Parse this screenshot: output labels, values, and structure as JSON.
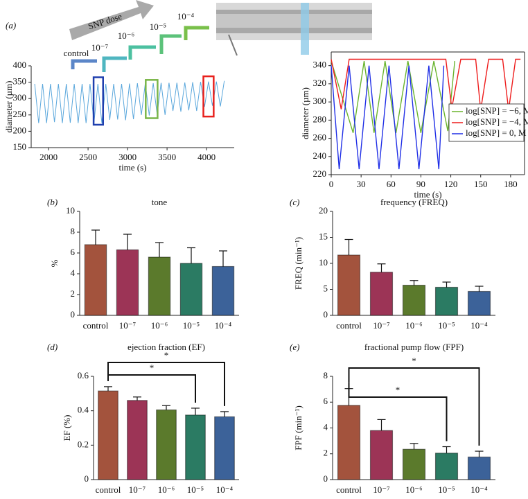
{
  "chart_data": [
    {
      "type": "line",
      "panel_label": "(a)",
      "x_label": "time (s)",
      "y_label": "diameter (µm)",
      "dose_arrow": "SNP dose",
      "dose_labels": [
        "control",
        "10⁻⁷",
        "10⁻⁶",
        "10⁻⁵",
        "10⁻⁴"
      ],
      "xlim": [
        1780,
        4350
      ],
      "xticks": [
        2000,
        2500,
        3000,
        3500,
        4000
      ],
      "ylim": [
        150,
        400
      ],
      "yticks": [
        150,
        200,
        250,
        300,
        350,
        400
      ],
      "x": [
        1825,
        1875,
        1925,
        1975,
        2025,
        2075,
        2125,
        2175,
        2225,
        2275,
        2325,
        2375,
        2425,
        2475,
        2525,
        2575,
        2625,
        2675,
        2725,
        2775,
        2825,
        2875,
        2925,
        2975,
        3025,
        3075,
        3125,
        3175,
        3225,
        3275,
        3325,
        3375,
        3425,
        3475,
        3525,
        3575,
        3625,
        3675,
        3725,
        3775,
        3825,
        3875,
        3925,
        3975,
        4025,
        4075,
        4125,
        4175,
        4225
      ],
      "series": [
        {
          "color": "#5aa7dc",
          "values": [
            345,
            225,
            345,
            225,
            345,
            228,
            345,
            225,
            345,
            226,
            345,
            225,
            345,
            225,
            345,
            226,
            345,
            225,
            345,
            235,
            345,
            236,
            345,
            234,
            346,
            237,
            347,
            250,
            347,
            248,
            347,
            252,
            348,
            250,
            348,
            262,
            348,
            260,
            349,
            264,
            350,
            262,
            351,
            275,
            352,
            278,
            352,
            276,
            354
          ]
        }
      ],
      "boxes": [
        {
          "color": "#1f3fae",
          "xlim": [
            2570,
            2690
          ],
          "ylim": [
            220,
            365
          ]
        },
        {
          "color": "#7ab648",
          "xlim": [
            3230,
            3380
          ],
          "ylim": [
            240,
            357
          ]
        },
        {
          "color": "#e8201c",
          "xlim": [
            3960,
            4090
          ],
          "ylim": [
            245,
            368
          ]
        }
      ]
    },
    {
      "type": "line",
      "x_label": "time (s)",
      "y_label": "diameter (µm)",
      "xlim": [
        0,
        194
      ],
      "xticks": [
        0,
        30,
        60,
        90,
        120,
        150,
        180
      ],
      "ylim": [
        220,
        355
      ],
      "yticks": [
        220,
        240,
        260,
        280,
        300,
        320,
        340
      ],
      "series": [
        {
          "name": "log[SNP] = −6, M",
          "color": "#6ab42e",
          "x": [
            0,
            22,
            33,
            43,
            54,
            65,
            77,
            90,
            103,
            117,
            124
          ],
          "values": [
            345,
            266,
            345,
            266,
            345,
            266,
            345,
            266,
            345,
            268,
            345
          ]
        },
        {
          "name": "log[SNP] = −4, M",
          "color": "#ee1c1c",
          "x": [
            0,
            10,
            18,
            115,
            121,
            130,
            145,
            150,
            158,
            172,
            178,
            185,
            190
          ],
          "values": [
            347,
            292,
            347,
            347,
            293,
            347,
            347,
            291,
            347,
            347,
            291,
            347,
            347
          ]
        },
        {
          "name": "log[SNP] = 0, M",
          "color": "#1f2ee6",
          "x": [
            0,
            8,
            18,
            28,
            38,
            48,
            58,
            68,
            78,
            88,
            98,
            108,
            113
          ],
          "values": [
            340,
            226,
            340,
            226,
            340,
            226,
            340,
            226,
            340,
            226,
            340,
            226,
            340
          ]
        }
      ]
    },
    {
      "type": "bar",
      "panel_label": "(b)",
      "title": "tone",
      "y_label": "%",
      "categories": [
        "control",
        "10⁻⁷",
        "10⁻⁶",
        "10⁻⁵",
        "10⁻⁴"
      ],
      "colors": [
        "#a3533d",
        "#9c3456",
        "#5b7a2c",
        "#2b7b63",
        "#3c6299"
      ],
      "values": [
        6.8,
        6.3,
        5.6,
        5.0,
        4.7
      ],
      "errors": [
        1.4,
        1.5,
        1.4,
        1.5,
        1.5
      ],
      "ylim": [
        0,
        10
      ],
      "yticks": [
        0,
        2,
        4,
        6,
        8,
        10
      ]
    },
    {
      "type": "bar",
      "panel_label": "(c)",
      "title": "frequency (FREQ)",
      "y_label": "FREQ (min⁻¹)",
      "categories": [
        "control",
        "10⁻⁷",
        "10⁻⁶",
        "10⁻⁵",
        "10⁻⁴"
      ],
      "colors": [
        "#a3533d",
        "#9c3456",
        "#5b7a2c",
        "#2b7b63",
        "#3c6299"
      ],
      "values": [
        11.6,
        8.3,
        5.8,
        5.4,
        4.6
      ],
      "errors": [
        3.0,
        1.6,
        0.9,
        1.0,
        1.0
      ],
      "ylim": [
        0,
        20
      ],
      "yticks": [
        0,
        5,
        10,
        15,
        20
      ]
    },
    {
      "type": "bar",
      "panel_label": "(d)",
      "title": "ejection fraction (EF)",
      "y_label": "EF (%)",
      "categories": [
        "control",
        "10⁻⁷",
        "10⁻⁶",
        "10⁻⁵",
        "10⁻⁴"
      ],
      "colors": [
        "#a3533d",
        "#9c3456",
        "#5b7a2c",
        "#2b7b63",
        "#3c6299"
      ],
      "values": [
        0.515,
        0.46,
        0.405,
        0.375,
        0.365
      ],
      "errors": [
        0.025,
        0.02,
        0.025,
        0.04,
        0.03
      ],
      "ylim": [
        0,
        0.6
      ],
      "yticks": [
        0,
        0.2,
        0.4,
        0.6
      ],
      "significance": [
        {
          "from": 0,
          "to": 4,
          "label": "*"
        },
        {
          "from": 0,
          "to": 3,
          "label": "*"
        }
      ]
    },
    {
      "type": "bar",
      "panel_label": "(e)",
      "title": "fractional pump flow (FPF)",
      "y_label": "FPF (min⁻¹)",
      "categories": [
        "control",
        "10⁻⁷",
        "10⁻⁶",
        "10⁻⁵",
        "10⁻⁴"
      ],
      "colors": [
        "#a3533d",
        "#9c3456",
        "#5b7a2c",
        "#2b7b63",
        "#3c6299"
      ],
      "values": [
        5.75,
        3.8,
        2.35,
        2.05,
        1.75
      ],
      "errors": [
        1.3,
        0.85,
        0.45,
        0.5,
        0.45
      ],
      "ylim": [
        0,
        8
      ],
      "yticks": [
        0,
        2,
        4,
        6,
        8
      ],
      "significance": [
        {
          "from": 0,
          "to": 4,
          "label": "*"
        },
        {
          "from": 0,
          "to": 3,
          "label": "*"
        }
      ]
    }
  ]
}
